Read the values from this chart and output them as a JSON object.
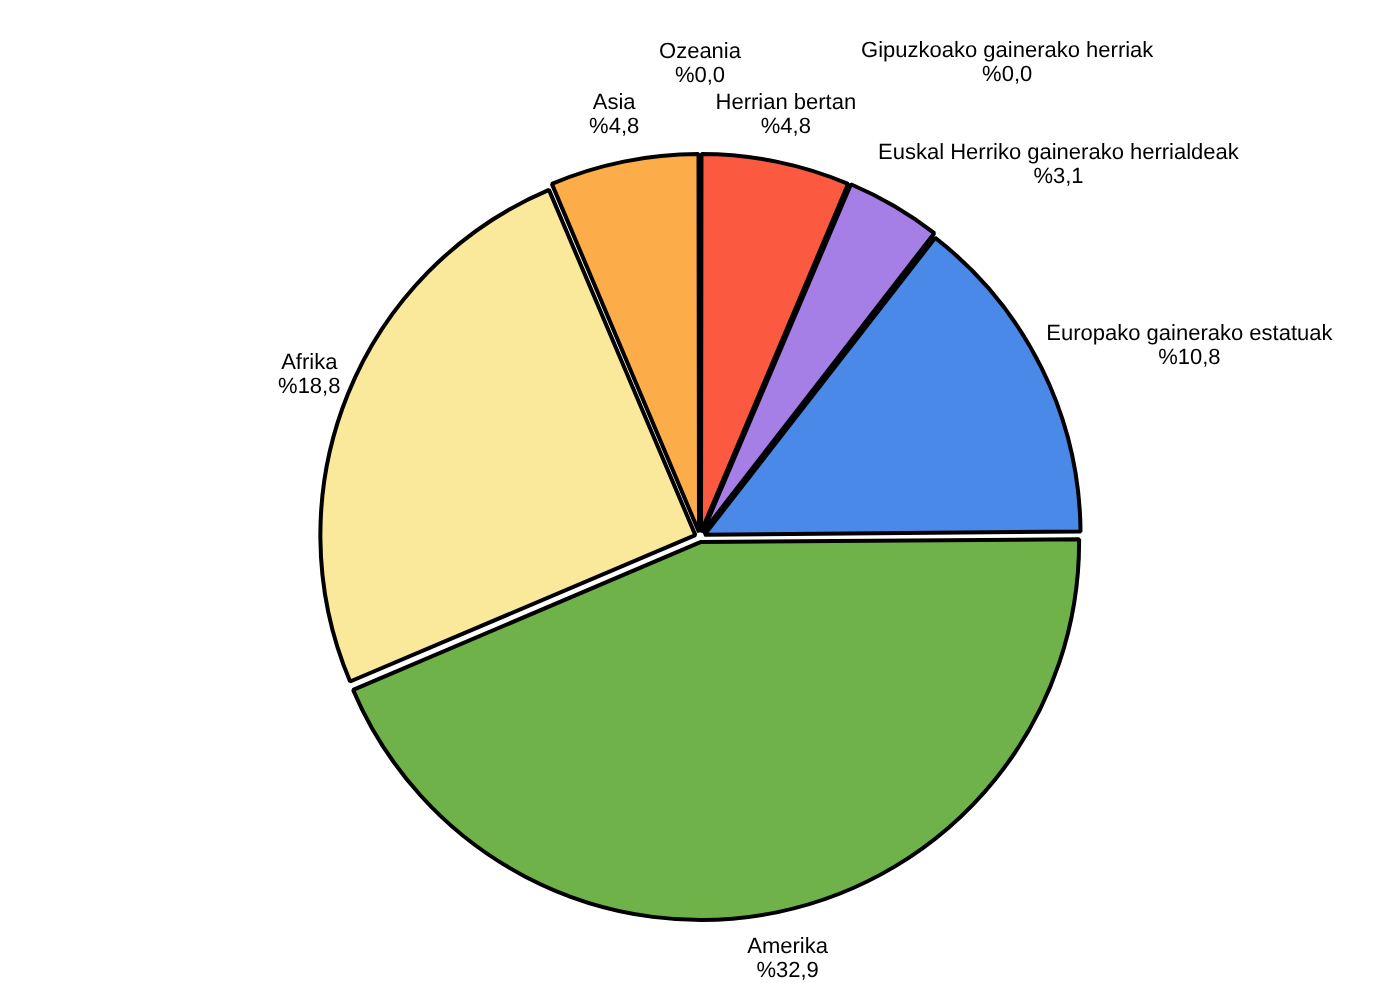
{
  "chart_data": {
    "type": "pie",
    "categories": [
      "Herrian bertan",
      "Gipuzkoako gainerako herriak",
      "Euskal Herriko gainerako herrialdeak",
      "Europako gainerako estatuak",
      "Amerika",
      "Afrika",
      "Asia",
      "Ozeania"
    ],
    "values": [
      4.8,
      0,
      3.1,
      10.8,
      32.9,
      18.8,
      4.8,
      0
    ],
    "value_labels": [
      "%4,8",
      "%0,0",
      "%3,1",
      "%10,8",
      "%32,9",
      "%18,8",
      "%4,8",
      "%0,0"
    ],
    "colors": [
      "#fb5a40",
      "#000000",
      "#a57ee6",
      "#4a89e8",
      "#70b24a",
      "#fae89b",
      "#fcad4a",
      "#000000"
    ],
    "legend": false
  }
}
